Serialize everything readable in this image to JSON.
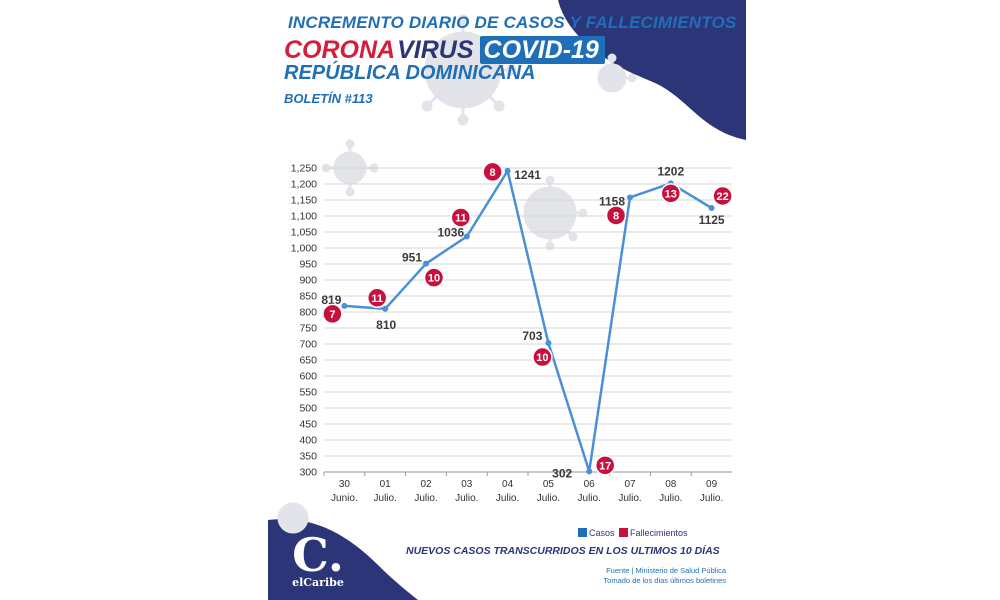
{
  "header": {
    "line1": "INCREMENTO DIARIO DE CASOS Y FALLECIMIENTOS",
    "corona": "CORONA",
    "virus": "VIRUS",
    "covid": "COVID-19",
    "country": "REPÚBLICA DOMINICANA",
    "bulletin": "BOLETÍN #113"
  },
  "chart_data": {
    "type": "line",
    "title": "INCREMENTO DIARIO DE CASOS Y FALLECIMIENTOS",
    "subtitle": "NUEVOS CASOS TRANSCURRIDOS EN LOS ULTIMOS 10 DÍAS",
    "categories": [
      {
        "day": "30",
        "month": "Junio."
      },
      {
        "day": "01",
        "month": "Julio."
      },
      {
        "day": "02",
        "month": "Julio."
      },
      {
        "day": "03",
        "month": "Julio."
      },
      {
        "day": "04",
        "month": "Julio."
      },
      {
        "day": "05",
        "month": "Julio."
      },
      {
        "day": "06",
        "month": "Julio."
      },
      {
        "day": "07",
        "month": "Julio."
      },
      {
        "day": "08",
        "month": "Julio."
      },
      {
        "day": "09",
        "month": "Julio."
      }
    ],
    "series": [
      {
        "name": "Casos",
        "color": "#4a90d9",
        "values": [
          819,
          810,
          951,
          1036,
          1241,
          703,
          302,
          1158,
          1202,
          1125
        ]
      },
      {
        "name": "Fallecimientos",
        "color": "#c8103e",
        "values": [
          7,
          11,
          10,
          11,
          8,
          10,
          17,
          8,
          13,
          22
        ]
      }
    ],
    "yticks": [
      "1,250",
      "1,200",
      "1,150",
      "1,100",
      "1,050",
      "1,000",
      "950",
      "900",
      "850",
      "800",
      "750",
      "700",
      "650",
      "600",
      "550",
      "500",
      "450",
      "400",
      "350",
      "300"
    ],
    "ylim": [
      300,
      1250
    ],
    "grid": true,
    "legend_position": "bottom-right"
  },
  "footer": {
    "subtitle": "NUEVOS CASOS TRANSCURRIDOS EN LOS ULTIMOS 10 DÍAS",
    "source_line1": "Fuente | Ministerio de Salud Pública",
    "source_line2": "Tomado de  los dias últimos boletines",
    "logo_letter": "C.",
    "logo_name": "elCaribe"
  },
  "colors": {
    "navy": "#2c3577",
    "blue": "#1f6fb8",
    "line": "#4a90d9",
    "red": "#c8103e"
  }
}
